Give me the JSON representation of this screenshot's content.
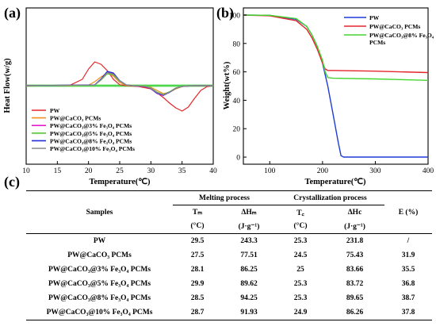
{
  "chart_data": [
    {
      "panel": "(a)",
      "type": "line",
      "xlabel": "Temperature(℃)",
      "ylabel": "Heat Flow(w/g)",
      "xlim": [
        10,
        40
      ],
      "x_ticks": [
        10,
        15,
        20,
        25,
        30,
        35,
        40
      ],
      "grid": false,
      "legend_position": "bottom-left",
      "series": [
        {
          "name": "PW",
          "color": "#e3262b",
          "x": [
            10,
            17,
            19,
            20,
            21,
            22,
            23,
            24,
            25,
            26,
            28,
            30,
            31,
            32,
            33,
            34,
            35,
            36,
            37,
            38,
            39,
            40
          ],
          "y": [
            0.0,
            0.02,
            0.4,
            1.05,
            1.5,
            1.35,
            0.95,
            0.4,
            0.06,
            0.0,
            -0.05,
            -0.2,
            -0.45,
            -0.75,
            -1.1,
            -1.4,
            -1.6,
            -1.35,
            -0.8,
            -0.3,
            -0.06,
            0.0
          ]
        },
        {
          "name": "PW@CaCO₃ PCMs",
          "color": "#f28e1c",
          "x": [
            10,
            20,
            21,
            22,
            23,
            24,
            25,
            26,
            28,
            30,
            31,
            32,
            33,
            34,
            35,
            36,
            38,
            40
          ],
          "y": [
            0.0,
            0.03,
            0.25,
            0.55,
            0.8,
            0.6,
            0.2,
            0.02,
            -0.02,
            -0.1,
            -0.3,
            -0.5,
            -0.42,
            -0.2,
            -0.06,
            -0.02,
            0.0,
            0.0
          ]
        },
        {
          "name": "PW@CaCO₃@3% Fe₃O₄ PCMs",
          "color": "#e21ccf",
          "x": [
            10,
            21,
            22,
            23,
            24,
            25,
            26,
            27,
            29,
            30,
            31,
            32,
            33,
            34,
            35,
            37,
            40
          ],
          "y": [
            0.0,
            0.05,
            0.4,
            0.85,
            0.75,
            0.3,
            0.05,
            0.0,
            -0.05,
            -0.2,
            -0.5,
            -0.62,
            -0.4,
            -0.15,
            -0.05,
            0.0,
            0.0
          ]
        },
        {
          "name": "PW@CaCO₃@5% Fe₃O₄ PCMs",
          "color": "#55c435",
          "x": [
            10,
            21,
            22,
            23,
            24,
            25,
            26,
            27,
            29,
            30,
            31,
            32,
            33,
            34,
            35,
            37,
            40
          ],
          "y": [
            0.0,
            0.04,
            0.35,
            0.75,
            0.68,
            0.28,
            0.05,
            0.0,
            -0.04,
            -0.15,
            -0.4,
            -0.55,
            -0.38,
            -0.14,
            -0.04,
            0.0,
            0.0
          ]
        },
        {
          "name": "PW@CaCO₃@8% Fe₃O₄ PCMs",
          "color": "#1f2fd6",
          "x": [
            10,
            21,
            22,
            23,
            24,
            25,
            26,
            27,
            29,
            30,
            31,
            32,
            33,
            34,
            35,
            37,
            40
          ],
          "y": [
            0.0,
            0.05,
            0.42,
            0.9,
            0.8,
            0.32,
            0.06,
            0.0,
            -0.05,
            -0.18,
            -0.48,
            -0.6,
            -0.42,
            -0.16,
            -0.05,
            0.0,
            0.0
          ]
        },
        {
          "name": "PW@CaCO₃@10% Fe₃O₄ PCMs",
          "color": "#8a8a8a",
          "x": [
            10,
            21,
            22,
            23,
            24,
            25,
            26,
            27,
            29,
            30,
            31,
            32,
            33,
            34,
            35,
            37,
            40
          ],
          "y": [
            0.0,
            0.04,
            0.38,
            0.82,
            0.72,
            0.3,
            0.05,
            0.0,
            -0.04,
            -0.16,
            -0.44,
            -0.57,
            -0.4,
            -0.15,
            -0.05,
            0.0,
            0.0
          ]
        }
      ],
      "baseline_band": {
        "color": "#4fd64f",
        "y": [
          0.02,
          0.0,
          -0.02
        ]
      }
    },
    {
      "panel": "(b)",
      "type": "line",
      "xlabel": "Temperature(℃)",
      "ylabel": "Weight(wt%)",
      "xlim": [
        50,
        400
      ],
      "ylim": [
        -5,
        105
      ],
      "x_ticks": [
        100,
        200,
        300,
        400
      ],
      "y_ticks": [
        0,
        20,
        40,
        60,
        80,
        100
      ],
      "grid": false,
      "legend_position": "top-right",
      "series": [
        {
          "name": "PW",
          "color": "#1f3bd6",
          "x": [
            50,
            100,
            150,
            170,
            180,
            190,
            200,
            210,
            220,
            230,
            235,
            240,
            300,
            400
          ],
          "y": [
            100,
            99.8,
            97,
            92,
            86,
            78,
            66,
            50,
            30,
            10,
            1,
            0,
            0,
            0
          ]
        },
        {
          "name": "PW@CaCO₃ PCMs",
          "color": "#e3262b",
          "x": [
            50,
            100,
            150,
            170,
            180,
            190,
            200,
            205,
            210,
            220,
            300,
            400
          ],
          "y": [
            100,
            99.5,
            96,
            90,
            84,
            76,
            66,
            62,
            61,
            61,
            60.5,
            59.5
          ]
        },
        {
          "name": "PW@CaCO₃@8% Fe₃O₄ PCMs",
          "color": "#44d62e",
          "x": [
            50,
            100,
            150,
            170,
            180,
            190,
            200,
            205,
            210,
            220,
            300,
            400
          ],
          "y": [
            100,
            99.8,
            97.5,
            92,
            86,
            78,
            68,
            60,
            56,
            55.5,
            55,
            54
          ]
        }
      ]
    },
    {
      "panel": "(c)",
      "type": "table",
      "group_headers": [
        "Melting process",
        "Crystallization process"
      ],
      "column_headers": [
        "Samples",
        "Tₘ",
        "ΔHₘ",
        "T꜀",
        "ΔHc",
        "E (%)"
      ],
      "unit_headers": [
        "(°C)",
        "(J·g⁻¹)",
        "(°C)",
        "(J·g⁻¹)"
      ],
      "rows": [
        [
          "PW",
          "29.5",
          "243.3",
          "25.3",
          "231.8",
          "/"
        ],
        [
          "PW@CaCO₃ PCMs",
          "27.5",
          "77.51",
          "24.5",
          "75.43",
          "31.9"
        ],
        [
          "PW@CaCO₃@3% Fe₃O₄ PCMs",
          "28.1",
          "86.25",
          "25",
          "83.66",
          "35.5"
        ],
        [
          "PW@CaCO₃@5% Fe₃O₄ PCMs",
          "29.9",
          "89.62",
          "25.3",
          "83.72",
          "36.8"
        ],
        [
          "PW@CaCO₃@8% Fe₃O₄ PCMs",
          "28.5",
          "94.25",
          "25.3",
          "89.65",
          "38.7"
        ],
        [
          "PW@CaCO₃@10% Fe₃O₄ PCMs",
          "28.7",
          "91.93",
          "24.9",
          "86.26",
          "37.8"
        ]
      ]
    }
  ]
}
